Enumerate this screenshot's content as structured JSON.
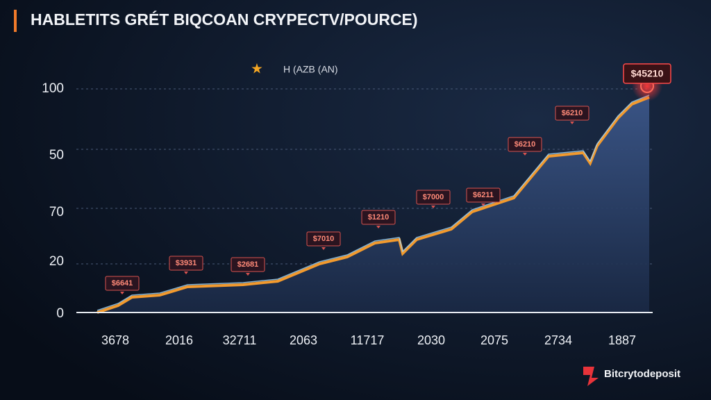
{
  "header": {
    "title": "HABLETITS GRÉT BIQCOAN CRYPECTV/POURCE)"
  },
  "legend": {
    "label": "H (AZB (AN)"
  },
  "y_axis_labels": [
    "100",
    "50",
    "70",
    "20",
    "0"
  ],
  "x_axis_labels": [
    "3678",
    "2016",
    "32711",
    "2063",
    "11717",
    "2030",
    "2075",
    "2734",
    "1887"
  ],
  "callouts": [
    "$6641",
    "$3931",
    "$2681",
    "$7010",
    "$1210",
    "$7000",
    "$6211",
    "$6210",
    "$6210"
  ],
  "peak_label": "$45210",
  "brand": "Bitcrytodeposit"
}
